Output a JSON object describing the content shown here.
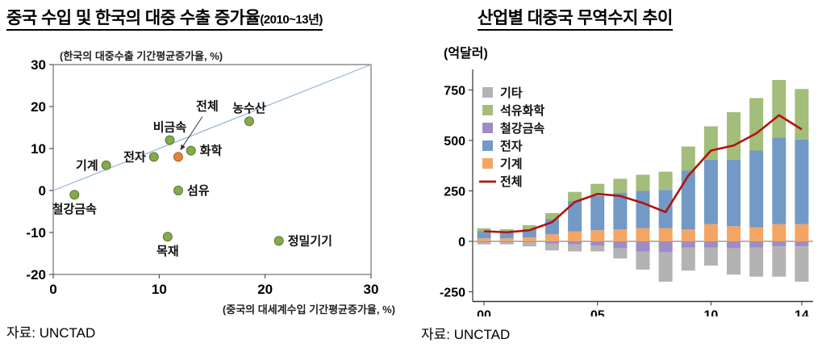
{
  "chart_data": [
    {
      "type": "scatter",
      "title": "중국 수입 및 한국의 대중 수출 증가율",
      "title_suffix": "(2010~13년)",
      "y_axis_note": "(한국의 대중수출 기간평균증가율, %)",
      "xlabel": "(중국의 대세계수입 기간평균증가율, %)",
      "source": "자료: UNCTAD",
      "xlim": [
        0,
        30
      ],
      "ylim": [
        -20,
        30
      ],
      "xticks": [
        0,
        10,
        20,
        30
      ],
      "yticks": [
        30,
        20,
        10,
        0,
        -10,
        -20
      ],
      "grid": false,
      "legend_position": "none",
      "diagonal_line": {
        "from": [
          0,
          0
        ],
        "to": [
          30,
          30
        ],
        "color": "#95b3d7"
      },
      "point_color": "#84a94e",
      "point_stroke": "#5e7a33",
      "points": [
        {
          "label": "철강금속",
          "x": 2,
          "y": -1,
          "label_pos": "below"
        },
        {
          "label": "기계",
          "x": 5,
          "y": 6,
          "label_pos": "left"
        },
        {
          "label": "전자",
          "x": 9.5,
          "y": 8,
          "label_pos": "left"
        },
        {
          "label": "비금속",
          "x": 11,
          "y": 12,
          "label_pos": "above"
        },
        {
          "label": "전체",
          "x": 11.8,
          "y": 8,
          "label_pos": "callout",
          "color": "#e2823c",
          "stroke": "#b06020"
        },
        {
          "label": "화학",
          "x": 13,
          "y": 9.5,
          "label_pos": "right"
        },
        {
          "label": "섬유",
          "x": 11.8,
          "y": 0,
          "label_pos": "right"
        },
        {
          "label": "농수산",
          "x": 18.5,
          "y": 16.5,
          "label_pos": "above"
        },
        {
          "label": "목재",
          "x": 10.8,
          "y": -11,
          "label_pos": "below"
        },
        {
          "label": "정밀기기",
          "x": 21.3,
          "y": -12,
          "label_pos": "right"
        }
      ]
    },
    {
      "type": "stacked-bar-line",
      "title": "산업별 대중국 무역수지 추이",
      "unit_label": "(억달러)",
      "source": "자료: UNCTAD",
      "ylim": [
        -250,
        800
      ],
      "yticks": [
        750,
        500,
        250,
        0,
        -250
      ],
      "grid": false,
      "legend_position": "top-left-inside",
      "categories": [
        "00",
        "01",
        "02",
        "03",
        "04",
        "05",
        "06",
        "07",
        "08",
        "09",
        "10",
        "11",
        "12",
        "13",
        "14"
      ],
      "xticks": [
        {
          "index": 0,
          "label": "00"
        },
        {
          "index": 5,
          "label": "05"
        },
        {
          "index": 10,
          "label": "10"
        },
        {
          "index": 14,
          "label": "14"
        }
      ],
      "series": [
        {
          "name": "기계",
          "color": "#f4a563",
          "values": [
            15,
            15,
            20,
            35,
            50,
            55,
            60,
            65,
            65,
            60,
            85,
            75,
            70,
            85,
            85
          ]
        },
        {
          "name": "전자",
          "color": "#7399c7",
          "values": [
            35,
            30,
            40,
            75,
            150,
            170,
            180,
            185,
            190,
            290,
            320,
            330,
            380,
            430,
            420
          ]
        },
        {
          "name": "석유화학",
          "color": "#a3bd7a",
          "values": [
            15,
            15,
            20,
            30,
            45,
            60,
            70,
            80,
            90,
            120,
            165,
            235,
            260,
            285,
            250
          ]
        },
        {
          "name": "철강금속",
          "color": "#9c8dc4",
          "values": [
            -5,
            -5,
            -5,
            -10,
            -15,
            -20,
            -35,
            -50,
            -55,
            -30,
            -30,
            -35,
            -30,
            -25,
            -25
          ]
        },
        {
          "name": "기타",
          "color": "#b3b3b3",
          "values": [
            -10,
            -10,
            -20,
            -35,
            -35,
            -30,
            -50,
            -90,
            -145,
            -115,
            -90,
            -130,
            -145,
            -150,
            -175
          ]
        }
      ],
      "line": {
        "name": "전체",
        "color": "#b01410",
        "values": [
          50,
          45,
          55,
          95,
          195,
          235,
          225,
          190,
          145,
          325,
          450,
          475,
          535,
          625,
          555
        ]
      },
      "legend": [
        {
          "label": "기타",
          "color": "#b3b3b3",
          "type": "box"
        },
        {
          "label": "석유화학",
          "color": "#a3bd7a",
          "type": "box"
        },
        {
          "label": "철강금속",
          "color": "#9c8dc4",
          "type": "box"
        },
        {
          "label": "전자",
          "color": "#7399c7",
          "type": "box"
        },
        {
          "label": "기계",
          "color": "#f4a563",
          "type": "box"
        },
        {
          "label": "전체",
          "color": "#b01410",
          "type": "line"
        }
      ]
    }
  ]
}
